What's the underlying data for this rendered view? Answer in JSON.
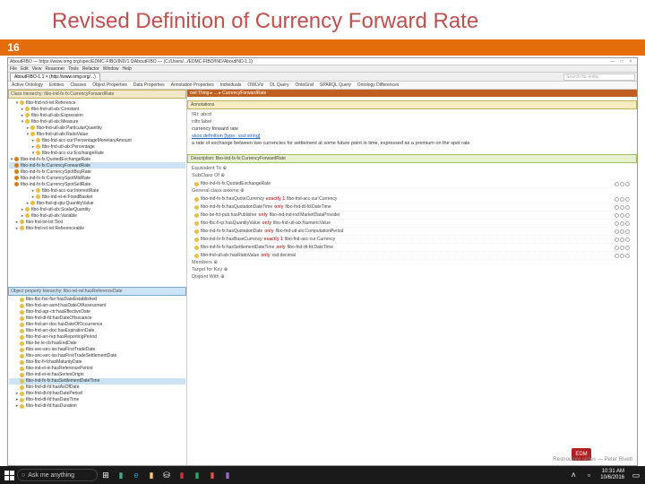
{
  "slide": {
    "title": "Revised Definition of Currency Forward Rate",
    "number": "16"
  },
  "window": {
    "title": "AboutFIBO — https://www.omg.org/spec/EDMC-FIBO/IND/1.0/AboutFIBO — (C:/Users/.../EDMC-FIBO/IND/AboutIND-1.1)",
    "min": "—",
    "max": "□",
    "close": "×"
  },
  "menu": {
    "items": [
      "File",
      "Edit",
      "View",
      "Reasoner",
      "Tools",
      "Refactor",
      "Window",
      "Help"
    ]
  },
  "tabs": {
    "active": "AboutFIBO-1.1  ×  (http://www.omg.org/...)",
    "search": "Search for entity"
  },
  "subtabs": {
    "items": [
      "Active Ontology",
      "Entities",
      "Classes",
      "Object Properties",
      "Data Properties",
      "Annotation Properties",
      "Individuals",
      "OWLViz",
      "DL Query",
      "OntoGraf",
      "SPARQL Query",
      "Ontology Differences"
    ]
  },
  "left_top": {
    "hdr": "Class hierarchy: fibo-ind-fx-fx:CurrencyForwardRate",
    "items": [
      {
        "ind": 1,
        "tog": "▾",
        "dot": "y",
        "lbl": "fibo-fnd-rel-rel:Reference"
      },
      {
        "ind": 2,
        "tog": "▸",
        "dot": "y",
        "lbl": "fibo-fnd-utl-alx:Constant"
      },
      {
        "ind": 2,
        "tog": "▸",
        "dot": "y",
        "lbl": "fibo-fnd-utl-alx:Expression"
      },
      {
        "ind": 2,
        "tog": "▾",
        "dot": "y",
        "lbl": "fibo-fnd-utl-alx:Measure"
      },
      {
        "ind": 3,
        "tog": "▸",
        "dot": "y",
        "lbl": "fibo-fnd-utl-alx:ParticularQuantity"
      },
      {
        "ind": 3,
        "tog": "▾",
        "dot": "y",
        "lbl": "fibo-fnd-utl-alx:RatioValue"
      },
      {
        "ind": 4,
        "tog": "▸",
        "dot": "y",
        "lbl": "fibo-fnd-acc-cur:PercentageMonetaryAmount"
      },
      {
        "ind": 4,
        "tog": "▸",
        "dot": "y",
        "lbl": "fibo-fnd-utl-alx:Percentage"
      },
      {
        "ind": 4,
        "tog": "▾",
        "dot": "y",
        "lbl": "fibo-fnd-acc-cur:ExchangeRate"
      },
      {
        "ind": 5,
        "tog": "▾",
        "dot": "o",
        "lbl": "fibo-ind-fx-fx:QuotedExchangeRate"
      },
      {
        "ind": 6,
        "tog": "",
        "dot": "o",
        "lbl": "fibo-ind-fx-fx:CurrencyForwardRate",
        "sel": true
      },
      {
        "ind": 6,
        "tog": "",
        "dot": "o",
        "lbl": "fibo-ind-fx-fx:CurrencySpotBuyRate"
      },
      {
        "ind": 6,
        "tog": "",
        "dot": "o",
        "lbl": "fibo-ind-fx-fx:CurrencySpotMidRate"
      },
      {
        "ind": 6,
        "tog": "",
        "dot": "o",
        "lbl": "fibo-ind-fx-fx:CurrencySpotSellRate"
      },
      {
        "ind": 4,
        "tog": "▸",
        "dot": "y",
        "lbl": "fibo-fnd-acc-cur:InterestRate"
      },
      {
        "ind": 4,
        "tog": "▸",
        "dot": "y",
        "lbl": "fibo-ind-ei-ei:FixedBasket"
      },
      {
        "ind": 3,
        "tog": "▸",
        "dot": "y",
        "lbl": "fibo-fnd-qt-qtu:QuantityValue"
      },
      {
        "ind": 2,
        "tog": "▸",
        "dot": "y",
        "lbl": "fibo-fnd-utl-alx:ScalarQuantity"
      },
      {
        "ind": 2,
        "tog": "▸",
        "dot": "y",
        "lbl": "fibo-fnd-utl-alx:Variable"
      },
      {
        "ind": 1,
        "tog": "▸",
        "dot": "y",
        "lbl": "fibo-fnd-txt-txt:Text"
      },
      {
        "ind": 1,
        "tog": "▸",
        "dot": "y",
        "lbl": "fibo-fnd-rel-rel:Referenceable"
      }
    ]
  },
  "left_bot": {
    "hdr": "Object property hierarchy: fibo-rel-rel:hasReferenceDate",
    "items": [
      {
        "ind": 1,
        "tog": "",
        "dot": "y",
        "lbl": "fibo-fbc-fse-fse:hasDateEstablished"
      },
      {
        "ind": 1,
        "tog": "",
        "dot": "y",
        "lbl": "fibo-fnd-arr-asmt:hasDateOfAssessment"
      },
      {
        "ind": 1,
        "tog": "",
        "dot": "y",
        "lbl": "fibo-fnd-agr-ctr:hasEffectiveDate"
      },
      {
        "ind": 1,
        "tog": "",
        "dot": "y",
        "lbl": "fibo-fnd-dt-fd:hasDateOfIssuance"
      },
      {
        "ind": 1,
        "tog": "",
        "dot": "y",
        "lbl": "fibo-fnd-arr-doc:hasDateOfOccurrence"
      },
      {
        "ind": 1,
        "tog": "",
        "dot": "y",
        "lbl": "fibo-fnd-arr-doc:hasExpirationDate"
      },
      {
        "ind": 1,
        "tog": "",
        "dot": "y",
        "lbl": "fibo-fnd-arr-rep:hasReportingPeriod"
      },
      {
        "ind": 1,
        "tog": "",
        "dot": "y",
        "lbl": "fibo-be-le-cb:hasEndDate"
      },
      {
        "ind": 1,
        "tog": "",
        "dot": "y",
        "lbl": "fibo-sec-sec-iss:hasFirstTradeDate"
      },
      {
        "ind": 1,
        "tog": "",
        "dot": "y",
        "lbl": "fibo-sec-sec-iss:hasFirstTradeSettlementDate"
      },
      {
        "ind": 1,
        "tog": "",
        "dot": "y",
        "lbl": "fibo-fbc-fi-fi:hasMaturityDate"
      },
      {
        "ind": 1,
        "tog": "",
        "dot": "y",
        "lbl": "fibo-ind-ei-ei:hasReferencePeriod"
      },
      {
        "ind": 1,
        "tog": "",
        "dot": "y",
        "lbl": "fibo-ind-ei-ei:hasSeriesOrigin"
      },
      {
        "ind": 1,
        "tog": "",
        "dot": "y",
        "lbl": "fibo-ind-fx-fx:hasSettlementDateTime",
        "sel": true
      },
      {
        "ind": 1,
        "tog": "",
        "dot": "y",
        "lbl": "fibo-fnd-dt-fd:hasAsOfDate"
      },
      {
        "ind": 1,
        "tog": "▸",
        "dot": "y",
        "lbl": "fibo-fnd-dt-fd:hasDatePeriod"
      },
      {
        "ind": 1,
        "tog": "▸",
        "dot": "y",
        "lbl": "fibo-fnd-dt-fd:hasDateTime"
      },
      {
        "ind": 1,
        "tog": "▸",
        "dot": "y",
        "lbl": "fibo-fnd-dt-fd:hasDuration"
      }
    ]
  },
  "detail": {
    "breadcrumb": "owl:Thing ▸ ... ▸ CurrencyForwardRate",
    "annot_hdr": "Annotations",
    "iri": "IRI: abcd",
    "label_k": "rdfs:label",
    "label_v": "currency forward rate",
    "def_k": "skos:definition   [type: xsd:string]",
    "def_v": "a rate of exchange between two currencies for settlement at some future point in time, expressed as a premium on the spot rate",
    "desc_hdr": "Description: fibo-ind-fx-fx:CurrencyForwardRate",
    "equiv": "Equivalent To ⊕",
    "sub_k": "SubClass Of ⊕",
    "sub_v": "fibo-ind-fx-fx:QuotedExchangeRate",
    "anon_k": "General class axioms ⊕",
    "anon_items": [
      {
        "pre": "fibo-ind-fx-fx:hasQuoteCurrency",
        "only": "exactly 1",
        "post": "fibo-fnd-acc-cur:Currency"
      },
      {
        "pre": "fibo-ind-fx-fx:hasQuotationDateTime",
        "only": "only",
        "post": "fibo-fnd-dt-fd:DateTime"
      },
      {
        "pre": "fibo-be-fct-pub:hasPublisher",
        "only": "only",
        "post": "fibo-ind-ind-ind:MarketDataProvider"
      },
      {
        "pre": "fibo-fbc-fi-ip:hasQuantityValue",
        "only": "only",
        "post": "fibo-fnd-utl-alx:NumericValue"
      },
      {
        "pre": "fibo-ind-fx-fx:hasQuotationDate",
        "only": "only",
        "post": "fibo-fnd-utl-alx:ComputationPeriod"
      },
      {
        "pre": "fibo-ind-fx-fx:hasBaseCurrency",
        "only": "exactly 1",
        "post": "fibo-fnd-acc-cur:Currency"
      },
      {
        "pre": "fibo-ind-fx-fx:hasSettlementDateTime",
        "only": "only",
        "post": "fibo-fnd-dt-fd:DateTime"
      },
      {
        "pre": "fibo-fnd-utl-alx:hasRatioValue",
        "only": "only",
        "post": "xsd:decimal"
      }
    ],
    "members": "Members ⊕",
    "target": "Target for Key ⊕",
    "disjoint": "Disjoint With ⊕"
  },
  "taskbar": {
    "cortana": "Ask me anything",
    "time": "10:31 AM",
    "date": "10/6/2016",
    "watermark": "Restructure slides — Peter Rivett",
    "edm": "EDM"
  },
  "colors": {
    "title": "#c0504d",
    "orange": "#e46c0a",
    "sel": "#cde4f7",
    "breadcrumb": "#c06020",
    "only": "#c04040"
  }
}
